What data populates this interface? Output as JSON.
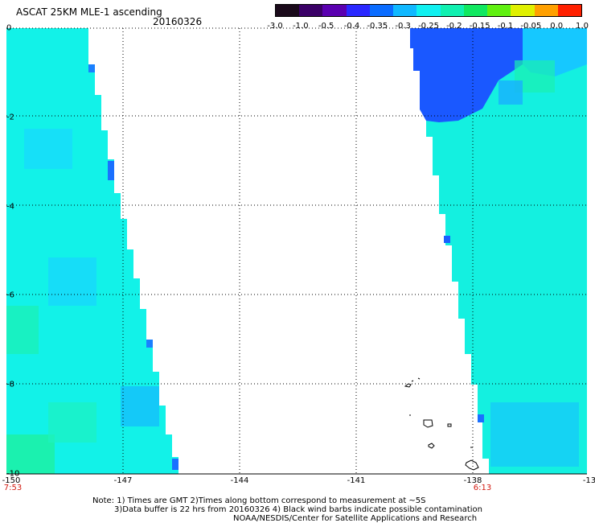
{
  "title": "ASCAT 25KM MLE-1 ascending",
  "date": "20160326",
  "colorbar": {
    "labels": [
      "-3.0",
      "-1.0",
      "-0.5",
      "-0.4",
      "-0.35",
      "-0.3",
      "-0.25",
      "-0.2",
      "-0.15",
      "-0.1",
      "-0.05",
      "0.0",
      "1.0"
    ],
    "colors": [
      "#1a0a1a",
      "#3a0066",
      "#5a00b0",
      "#2a28ff",
      "#0a6cff",
      "#10b8ff",
      "#10f0f0",
      "#10f0b0",
      "#10e860",
      "#60f010",
      "#e0f000",
      "#ffa000",
      "#ff2000"
    ]
  },
  "axes": {
    "y_labels": [
      "0",
      "-2",
      "-4",
      "-6",
      "-8",
      "-10"
    ],
    "x_labels": [
      "-150",
      "-147",
      "-144",
      "-141",
      "-138",
      "-13"
    ],
    "xlim": [
      -150,
      -135
    ],
    "ylim": [
      -10,
      0
    ]
  },
  "time_labels": [
    "7:53",
    "6:13"
  ],
  "swaths": [
    {
      "name": "west-swath",
      "color": "#12f2e8"
    },
    {
      "name": "east-swath",
      "color": "#14f0e0"
    }
  ],
  "notes": {
    "line1": "Note: 1) Times are GMT 2)Times along bottom correspond to measurement at ~5S",
    "line2": "3)Data buffer is 22 hrs from 20160326 4) Black wind barbs indicate possible contamination",
    "line3": "NOAA/NESDIS/Center for Satellite Applications and Research"
  }
}
